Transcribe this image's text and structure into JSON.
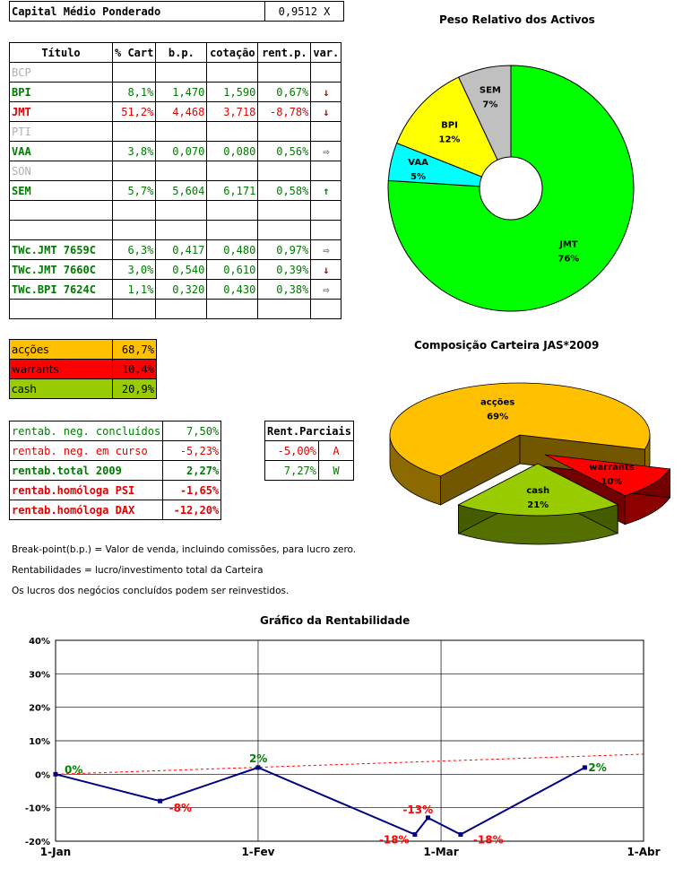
{
  "capital": {
    "label": "Capital Médio Ponderado",
    "value": "0,9512 X"
  },
  "portfolio": {
    "headers": [
      "Título",
      "% Cart",
      "b.p.",
      "cotação",
      "rent.p.",
      "var."
    ],
    "rows": [
      {
        "titulo": "BCP",
        "cart": "",
        "bp": "",
        "cot": "",
        "rent": "",
        "var": "",
        "style": "gray"
      },
      {
        "titulo": "BPI",
        "cart": "8,1%",
        "bp": "1,470",
        "cot": "1,590",
        "rent": "0,67%",
        "var": "down",
        "style": "g"
      },
      {
        "titulo": "JMT",
        "cart": "51,2%",
        "bp": "4,468",
        "cot": "3,718",
        "rent": "-8,78%",
        "var": "down",
        "style": "red"
      },
      {
        "titulo": "PTI",
        "cart": "",
        "bp": "",
        "cot": "",
        "rent": "",
        "var": "",
        "style": "gray"
      },
      {
        "titulo": "VAA",
        "cart": "3,8%",
        "bp": "0,070",
        "cot": "0,080",
        "rent": "0,56%",
        "var": "right",
        "style": "g"
      },
      {
        "titulo": "SON",
        "cart": "",
        "bp": "",
        "cot": "",
        "rent": "",
        "var": "",
        "style": "gray"
      },
      {
        "titulo": "SEM",
        "cart": "5,7%",
        "bp": "5,604",
        "cot": "6,171",
        "rent": "0,58%",
        "var": "up",
        "style": "g"
      },
      {
        "titulo": "",
        "cart": "",
        "bp": "",
        "cot": "",
        "rent": "",
        "var": "",
        "style": ""
      },
      {
        "titulo": "",
        "cart": "",
        "bp": "",
        "cot": "",
        "rent": "",
        "var": "",
        "style": ""
      },
      {
        "titulo": "TWc.JMT 7659C",
        "cart": "6,3%",
        "bp": "0,417",
        "cot": "0,480",
        "rent": "0,97%",
        "var": "right",
        "style": "g"
      },
      {
        "titulo": "TWc.JMT 7660C",
        "cart": "3,0%",
        "bp": "0,540",
        "cot": "0,610",
        "rent": "0,39%",
        "var": "down",
        "style": "g"
      },
      {
        "titulo": "TWc.BPI 7624C",
        "cart": "1,1%",
        "bp": "0,320",
        "cot": "0,430",
        "rent": "0,38%",
        "var": "right",
        "style": "g"
      },
      {
        "titulo": "",
        "cart": "",
        "bp": "",
        "cot": "",
        "rent": "",
        "var": "",
        "style": ""
      }
    ]
  },
  "composition": [
    {
      "label": "acções",
      "value": "68,7%",
      "color": "#ffc000",
      "text": "#000"
    },
    {
      "label": "warrants",
      "value": "10,4%",
      "color": "#ff0000",
      "text": "#000"
    },
    {
      "label": "cash",
      "value": "20,9%",
      "color": "#99cc00",
      "text": "#000"
    }
  ],
  "rentab": [
    {
      "label": "rentab. neg. concluídos",
      "value": "7,50%",
      "style": "g"
    },
    {
      "label": "rentab. neg. em curso",
      "value": "-5,23%",
      "style": "red"
    },
    {
      "label": "rentab.total 2009",
      "value": "2,27%",
      "style": "g b"
    },
    {
      "label": "rentab.homóloga PSI",
      "value": "-1,65%",
      "style": "red b"
    },
    {
      "label": "rentab.homóloga DAX",
      "value": "-12,20%",
      "style": "red b"
    }
  ],
  "rent_parciais": {
    "title": "Rent.Parciais",
    "rows": [
      {
        "value": "-5,00%",
        "tag": "A",
        "style": "red"
      },
      {
        "value": "7,27%",
        "tag": "W",
        "style": "g"
      }
    ]
  },
  "notes": [
    "Break-point(b.p.) = Valor de venda, incluindo comissões, para lucro zero.",
    "Rentabilidades = lucro/investimento total da Carteira",
    "Os lucros dos negócios concluídos podem ser reinvestidos."
  ],
  "chart_data": [
    {
      "type": "pie",
      "title": "Peso Relativo dos Activos",
      "labels": [
        "JMT",
        "VAA",
        "BPI",
        "SEM"
      ],
      "values": [
        76,
        5,
        12,
        7
      ],
      "value_labels": [
        "76%",
        "5%",
        "12%",
        "7%"
      ],
      "colors": [
        "#00ff00",
        "#00ffff",
        "#ffff00",
        "#c0c0c0"
      ],
      "donut": true
    },
    {
      "type": "pie",
      "title": "Composição Carteira JAS*2009",
      "labels": [
        "acções",
        "warrants",
        "cash"
      ],
      "values": [
        69,
        10,
        21
      ],
      "value_labels": [
        "69%",
        "10%",
        "21%"
      ],
      "colors": [
        "#ffc000",
        "#ff0000",
        "#99cc00"
      ],
      "style": "3d-exploded"
    },
    {
      "type": "line",
      "title": "Gráfico da Rentabilidade",
      "x_ticks": [
        "1-Jan",
        "1-Fev",
        "1-Mar",
        "1-Abr"
      ],
      "x": [
        "2009-01-01",
        "2009-01-17",
        "2009-02-01",
        "2009-02-25",
        "2009-02-27",
        "2009-03-04",
        "2009-03-23"
      ],
      "y": [
        0,
        -8,
        2,
        -18,
        -13,
        -18,
        2
      ],
      "data_labels": [
        "0%",
        "-8%",
        "2%",
        "-18%",
        "-13%",
        "-18%",
        "2%"
      ],
      "label_colors": [
        "#008000",
        "#ff0000",
        "#008000",
        "#ff0000",
        "#ff0000",
        "#ff0000",
        "#008000"
      ],
      "y_ticks": [
        "40%",
        "30%",
        "20%",
        "10%",
        "0%",
        "-10%",
        "-20%"
      ],
      "ylim": [
        -20,
        40
      ],
      "line_color": "#000080",
      "trend": {
        "color": "#ff0000",
        "style": "dashed",
        "x": [
          "2009-01-01",
          "2009-04-01"
        ],
        "y": [
          0,
          6
        ]
      },
      "grid": true
    }
  ]
}
